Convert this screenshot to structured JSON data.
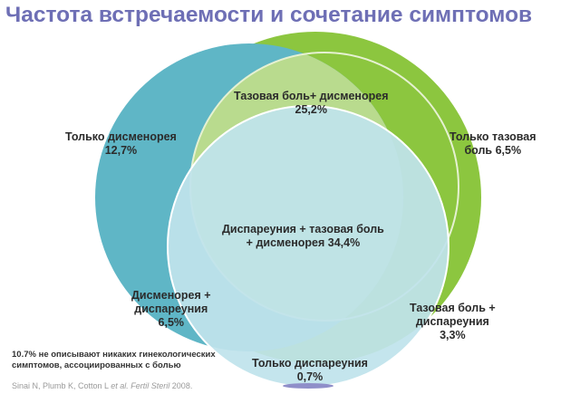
{
  "title": "Частота встречаемости и сочетание симптомов",
  "colors": {
    "title": "#6e6fb5",
    "dysmenorrhea_circle": "#5fb6c6",
    "pelvic_pain_circle": "#8cc63f",
    "inner_green": "#b6d98a",
    "dyspareunia_circle": "#bfe3ec"
  },
  "regions": {
    "pelvic_dysmenorrhea": {
      "label": "Тазовая боль+ дисменорея",
      "value": "25,2%"
    },
    "dysmenorrhea_only": {
      "label": "Только дисменорея",
      "value": "12,7%"
    },
    "pelvic_only": {
      "line1": "Только тазовая",
      "line2": "боль 6,5%"
    },
    "all_three": {
      "line1": "Диспареуния + тазовая боль",
      "line2": "+ дисменорея 34,4%"
    },
    "dysmenorrhea_dyspareunia": {
      "line1": "Дисменорея +",
      "line2": "диспареуния",
      "value": "6,5%"
    },
    "pelvic_dyspareunia": {
      "line1": "Тазовая боль +",
      "line2": "диспареуния",
      "value": "3,3%"
    },
    "dyspareunia_only": {
      "label": "Только диспареуния",
      "value": "0,7%"
    }
  },
  "note": {
    "line1": "10.7% не описывают никаких гинекологических",
    "line2": "симптомов, ассоциированных с болью"
  },
  "reference": {
    "authors": "Sinai N, Plumb K, Cotton L",
    "etal": "et al.",
    "journal": "Fertil Steril",
    "year": "2008."
  }
}
